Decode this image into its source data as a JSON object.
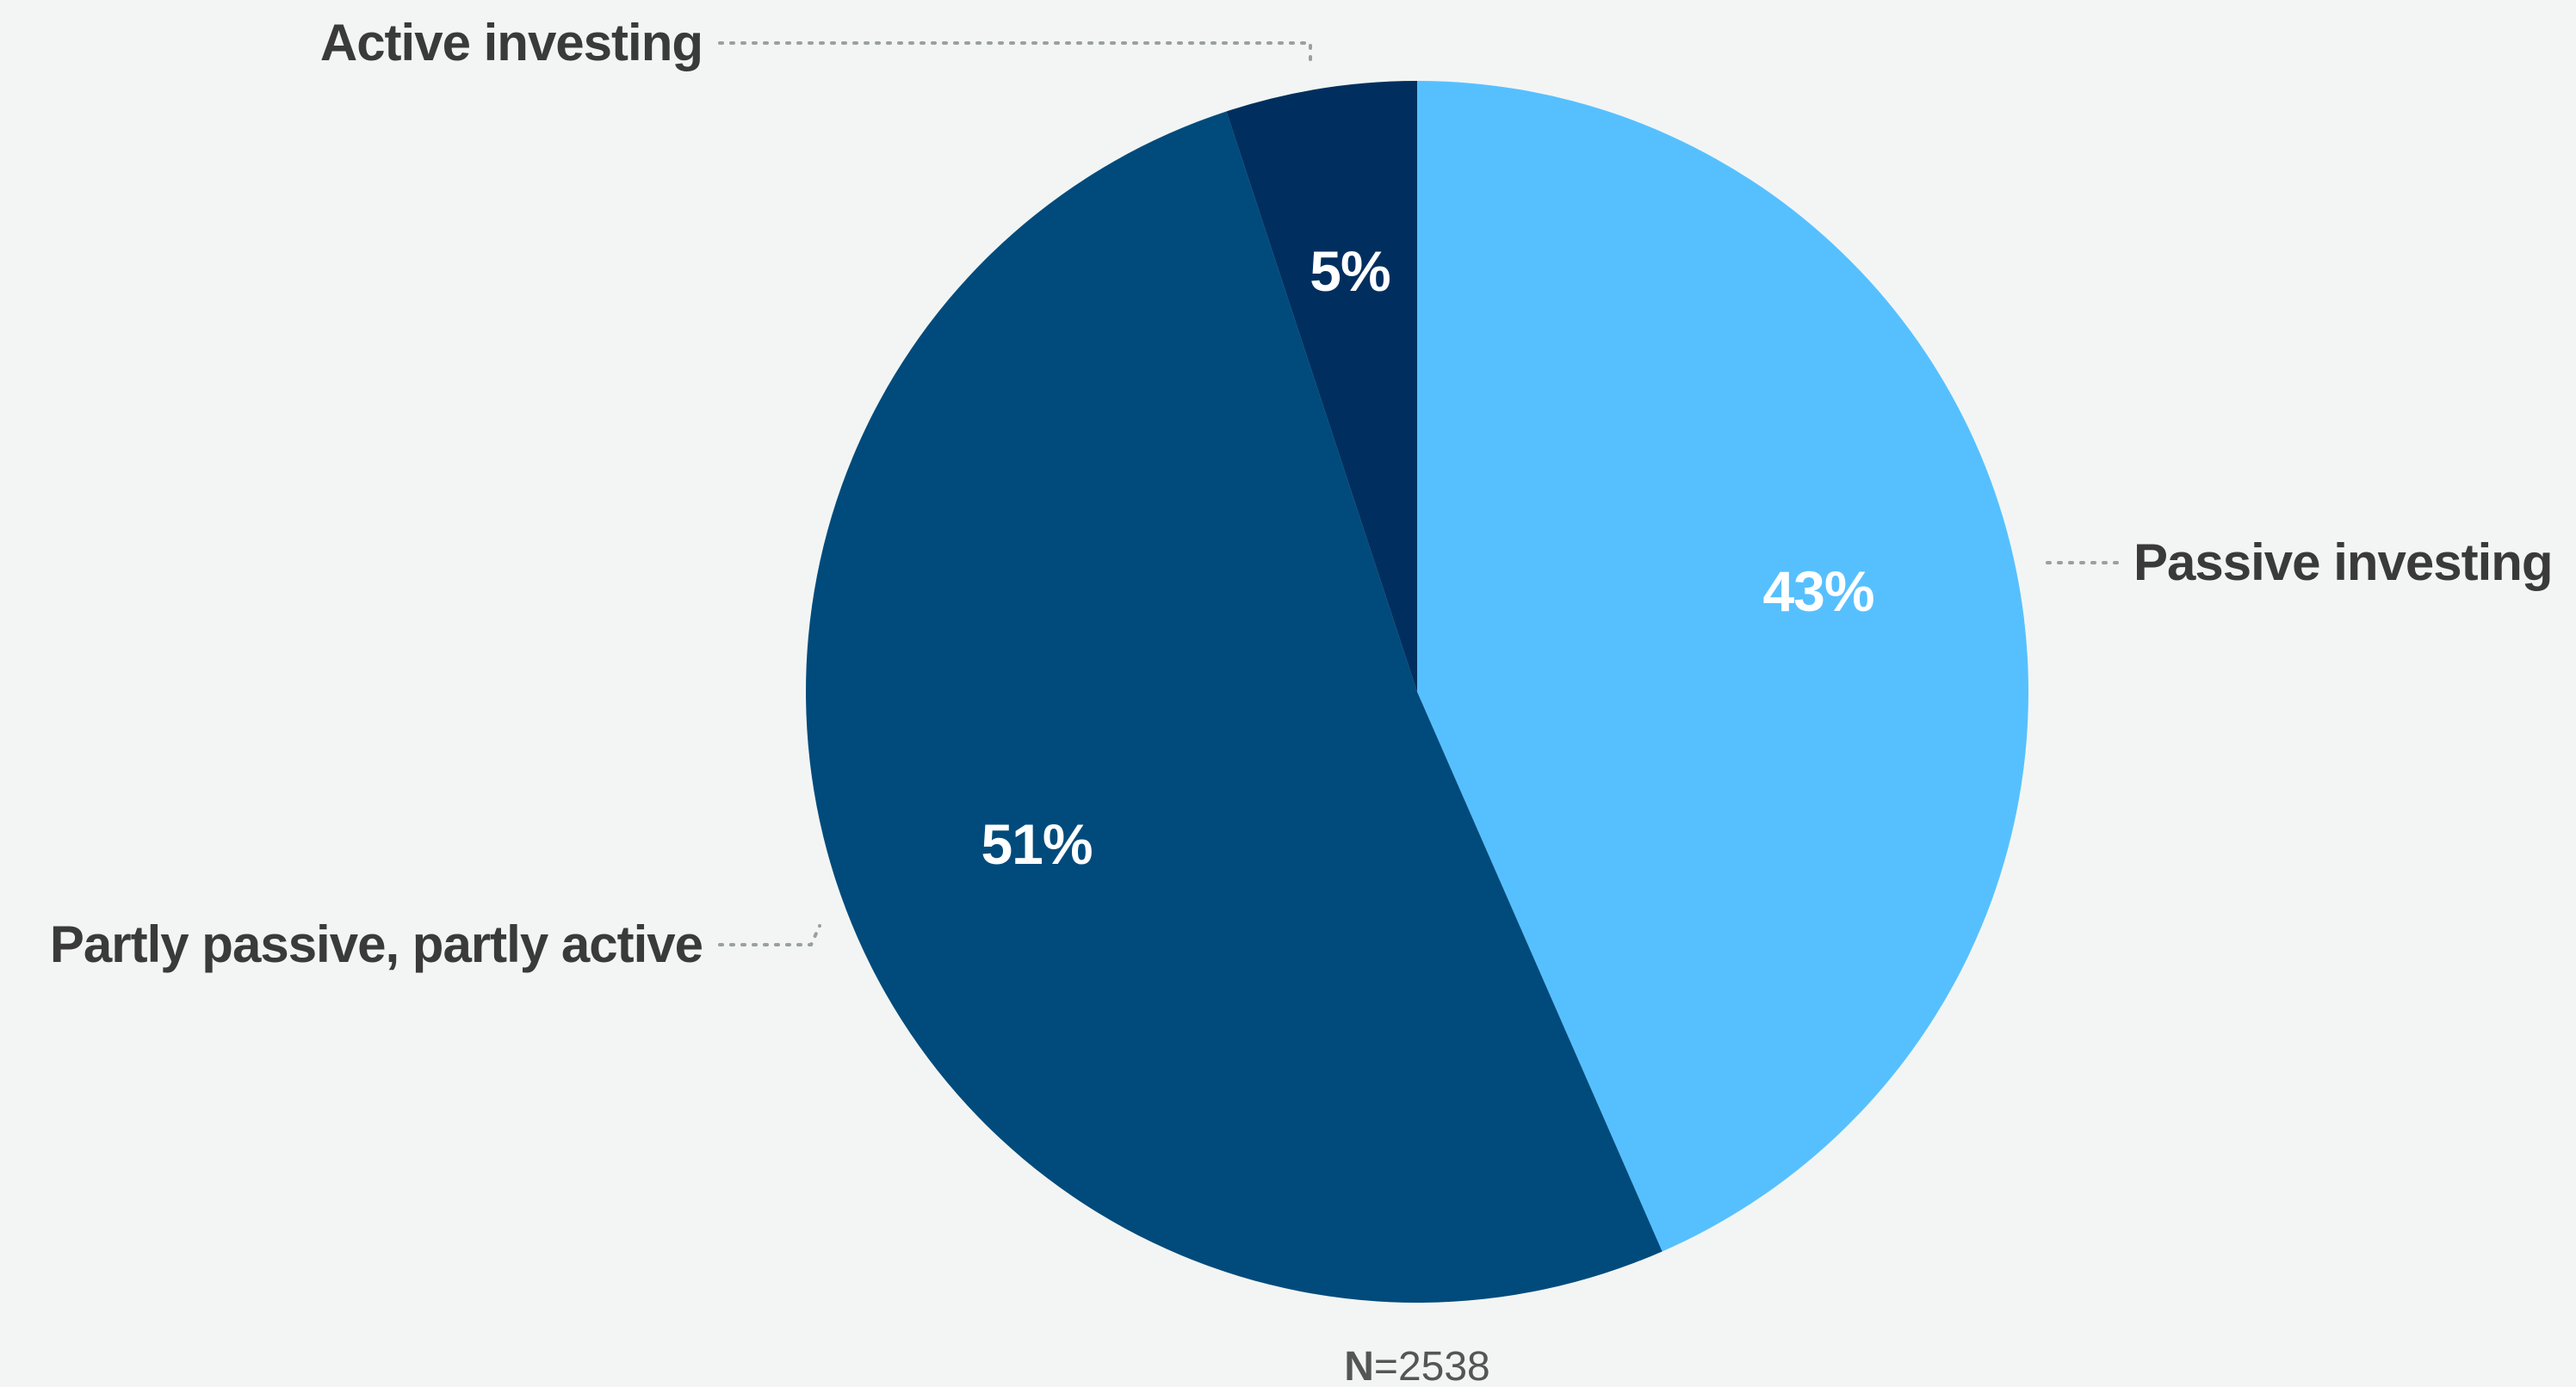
{
  "chart_data": {
    "type": "pie",
    "slices": [
      {
        "label": "Passive investing",
        "value": 43,
        "value_label": "43%",
        "color": "#56c0ff"
      },
      {
        "label": "Partly passive, partly active",
        "value": 51,
        "value_label": "51%",
        "color": "#004b7c"
      },
      {
        "label": "Active investing",
        "value": 5,
        "value_label": "5%",
        "color": "#002f5f"
      }
    ],
    "start_angle": "12 o'clock",
    "direction": "clockwise",
    "legend": "none",
    "labels_placement": "outside with dotted leader lines"
  },
  "footnote": {
    "n_prefix": "N",
    "n_rest": "=2538"
  }
}
